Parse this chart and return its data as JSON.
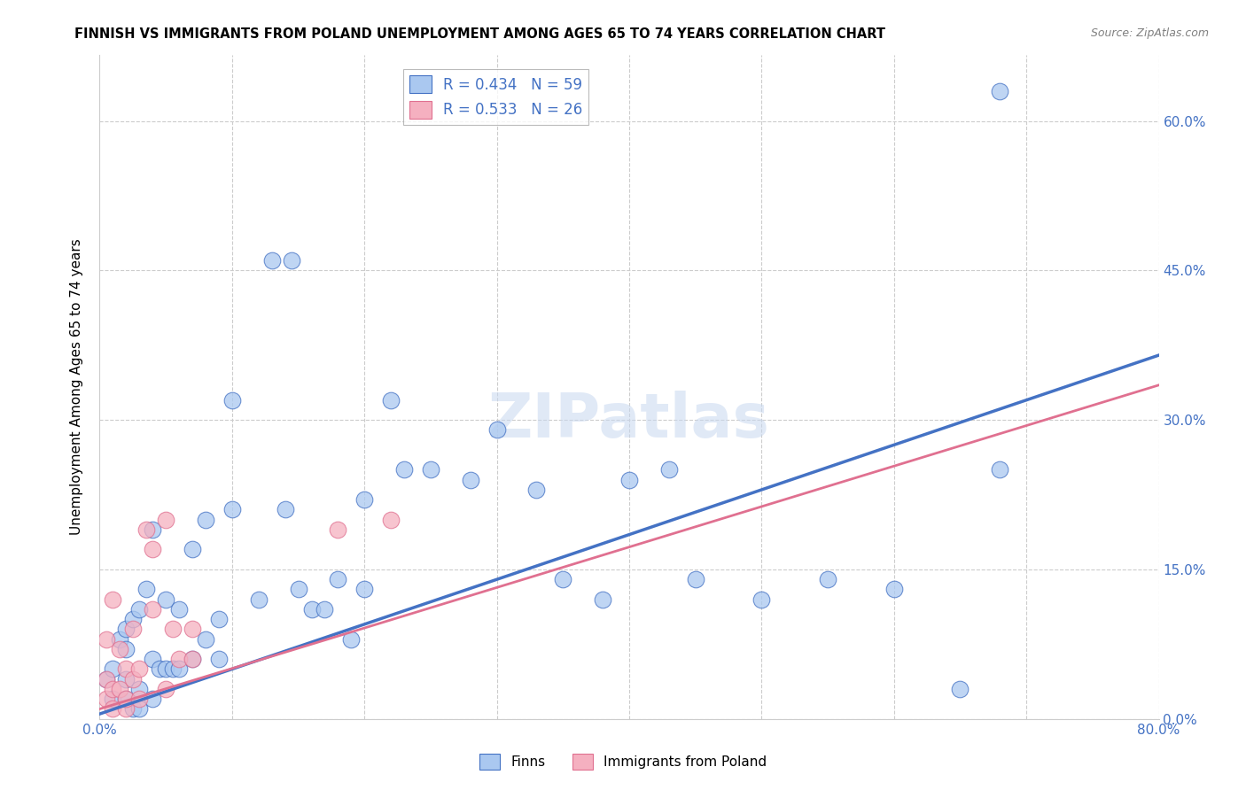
{
  "title": "FINNISH VS IMMIGRANTS FROM POLAND UNEMPLOYMENT AMONG AGES 65 TO 74 YEARS CORRELATION CHART",
  "source": "Source: ZipAtlas.com",
  "xlabel": "",
  "ylabel": "Unemployment Among Ages 65 to 74 years",
  "xlim": [
    0.0,
    0.8
  ],
  "ylim": [
    0.0,
    0.666
  ],
  "xticks": [
    0.0,
    0.1,
    0.2,
    0.3,
    0.4,
    0.5,
    0.6,
    0.7,
    0.8
  ],
  "ytick_values": [
    0.0,
    0.15,
    0.3,
    0.45,
    0.6
  ],
  "finns_R": 0.434,
  "finns_N": 59,
  "poland_R": 0.533,
  "poland_N": 26,
  "finns_color": "#aac8f0",
  "poland_color": "#f5b0c0",
  "finn_line_color": "#4472c4",
  "poland_line_color": "#e07090",
  "watermark": "ZIPatlas",
  "finns_x": [
    0.005,
    0.01,
    0.01,
    0.015,
    0.02,
    0.02,
    0.02,
    0.02,
    0.025,
    0.025,
    0.03,
    0.03,
    0.03,
    0.035,
    0.04,
    0.04,
    0.04,
    0.045,
    0.05,
    0.05,
    0.055,
    0.06,
    0.06,
    0.07,
    0.07,
    0.08,
    0.08,
    0.09,
    0.09,
    0.1,
    0.1,
    0.12,
    0.13,
    0.14,
    0.145,
    0.15,
    0.16,
    0.17,
    0.18,
    0.19,
    0.2,
    0.2,
    0.22,
    0.23,
    0.25,
    0.28,
    0.3,
    0.33,
    0.35,
    0.38,
    0.4,
    0.43,
    0.45,
    0.5,
    0.55,
    0.6,
    0.65,
    0.68,
    0.68
  ],
  "finns_y": [
    0.04,
    0.02,
    0.05,
    0.08,
    0.02,
    0.04,
    0.07,
    0.09,
    0.01,
    0.1,
    0.01,
    0.03,
    0.11,
    0.13,
    0.02,
    0.06,
    0.19,
    0.05,
    0.05,
    0.12,
    0.05,
    0.05,
    0.11,
    0.06,
    0.17,
    0.08,
    0.2,
    0.06,
    0.1,
    0.21,
    0.32,
    0.12,
    0.46,
    0.21,
    0.46,
    0.13,
    0.11,
    0.11,
    0.14,
    0.08,
    0.22,
    0.13,
    0.32,
    0.25,
    0.25,
    0.24,
    0.29,
    0.23,
    0.14,
    0.12,
    0.24,
    0.25,
    0.14,
    0.12,
    0.14,
    0.13,
    0.03,
    0.25,
    0.63
  ],
  "poland_x": [
    0.005,
    0.005,
    0.005,
    0.01,
    0.01,
    0.01,
    0.015,
    0.015,
    0.02,
    0.02,
    0.02,
    0.025,
    0.025,
    0.03,
    0.03,
    0.035,
    0.04,
    0.04,
    0.05,
    0.05,
    0.055,
    0.06,
    0.07,
    0.07,
    0.18,
    0.22
  ],
  "poland_y": [
    0.02,
    0.04,
    0.08,
    0.01,
    0.03,
    0.12,
    0.03,
    0.07,
    0.01,
    0.02,
    0.05,
    0.04,
    0.09,
    0.02,
    0.05,
    0.19,
    0.11,
    0.17,
    0.03,
    0.2,
    0.09,
    0.06,
    0.06,
    0.09,
    0.19,
    0.2
  ],
  "finn_trend_x": [
    0.0,
    0.8
  ],
  "finn_trend_y": [
    0.005,
    0.365
  ],
  "poland_trend_x": [
    0.0,
    0.8
  ],
  "poland_trend_y": [
    0.01,
    0.335
  ]
}
